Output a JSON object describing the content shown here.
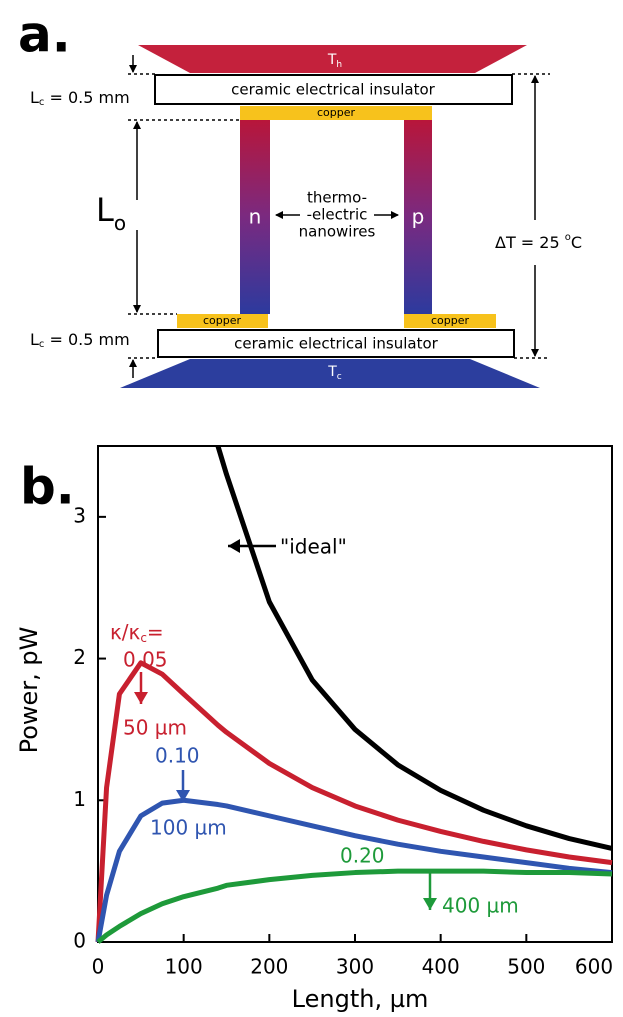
{
  "panel_a": {
    "label": "a.",
    "hot": {
      "symbol": "T",
      "sub": "h"
    },
    "cold": {
      "symbol": "T",
      "sub": "c"
    },
    "insulator_top": "ceramic electrical insulator",
    "insulator_bottom": "ceramic electrical insulator",
    "copper_top": "copper",
    "copper_left": "copper",
    "copper_right": "copper",
    "lc_top": {
      "symbol": "L",
      "sub": "c",
      "text": " = 0.5 mm"
    },
    "lc_bottom": {
      "symbol": "L",
      "sub": "c",
      "text": " = 0.5 mm"
    },
    "lo": {
      "symbol": "L",
      "sub": "o"
    },
    "leg_n": "n",
    "leg_p": "p",
    "wire_label": [
      "thermo-",
      "-electric",
      "nanowires"
    ],
    "delta_t": {
      "text": "ΔT = 25 ",
      "sup": "o",
      "unit": "C"
    }
  },
  "chart_data": {
    "type": "line",
    "panel_label": "b.",
    "x_label": "Length, µm",
    "y_label": "Power, pW",
    "x": [
      0,
      10,
      25,
      50,
      75,
      100,
      140,
      150,
      200,
      250,
      300,
      350,
      400,
      450,
      500,
      550,
      600
    ],
    "series": [
      {
        "name": "\"ideal\"",
        "color": "#000000",
        "values": [
          null,
          null,
          null,
          null,
          null,
          null,
          3.5,
          3.3,
          2.4,
          1.85,
          1.5,
          1.25,
          1.07,
          0.93,
          0.82,
          0.73,
          0.66
        ]
      },
      {
        "name": "0.05",
        "color": "#c8202f",
        "values": [
          0,
          1.09,
          1.75,
          1.97,
          1.89,
          1.75,
          1.53,
          1.48,
          1.26,
          1.09,
          0.96,
          0.86,
          0.78,
          0.71,
          0.65,
          0.6,
          0.56
        ]
      },
      {
        "name": "0.10",
        "color": "#2f55b0",
        "values": [
          0,
          0.33,
          0.64,
          0.89,
          0.98,
          1.0,
          0.97,
          0.96,
          0.89,
          0.82,
          0.75,
          0.69,
          0.64,
          0.6,
          0.56,
          0.52,
          0.49
        ]
      },
      {
        "name": "0.20",
        "color": "#1e9a3a",
        "values": [
          0,
          0.05,
          0.11,
          0.2,
          0.27,
          0.32,
          0.38,
          0.4,
          0.44,
          0.47,
          0.49,
          0.5,
          0.5,
          0.5,
          0.49,
          0.49,
          0.48
        ]
      }
    ],
    "ratio_label": {
      "text": "κ/κ",
      "sub": "c",
      "tail": "="
    },
    "peak_labels": [
      "50 µm",
      "100 µm",
      "400 µm"
    ],
    "xlim": [
      0,
      600
    ],
    "ylim": [
      0,
      3.5
    ],
    "xticks": [
      0,
      100,
      200,
      300,
      400,
      500,
      600
    ],
    "yticks": [
      0,
      1,
      2,
      3
    ]
  }
}
